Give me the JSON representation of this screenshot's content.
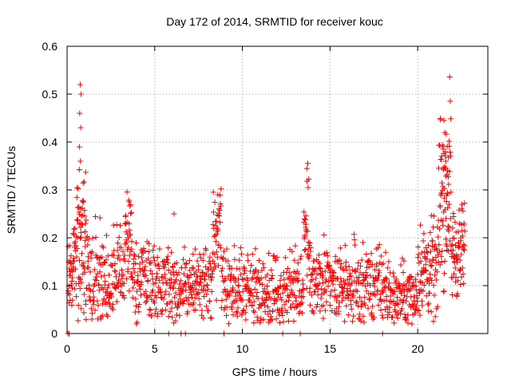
{
  "chart_data": {
    "type": "scatter",
    "title": "Day 172 of 2014, SRMTID for receiver kouc",
    "xlabel": "GPS time / hours",
    "ylabel": "SRMTID / TECUs",
    "xlim": [
      0,
      24
    ],
    "ylim": [
      0,
      0.6
    ],
    "xticks": [
      "0",
      "5",
      "10",
      "15",
      "20"
    ],
    "yticks": [
      "0",
      "0.1",
      "0.2",
      "0.3",
      "0.4",
      "0.5",
      "0.6"
    ],
    "grid": true,
    "marker": "+",
    "color": "#ff0000",
    "series": [
      {
        "name": "SRMTID",
        "segments": [
          {
            "t0": 0.05,
            "t1": 0.55,
            "base": 0.14,
            "noise": 0.06,
            "n": 45
          },
          {
            "t0": 0.55,
            "t1": 1.1,
            "base": 0.2,
            "noise": 0.1,
            "n": 60
          },
          {
            "t0": 1.1,
            "t1": 3.3,
            "base": 0.12,
            "noise": 0.06,
            "n": 150
          },
          {
            "t0": 3.3,
            "t1": 3.7,
            "base": 0.2,
            "noise": 0.07,
            "n": 35
          },
          {
            "t0": 3.7,
            "t1": 5.8,
            "base": 0.11,
            "noise": 0.05,
            "n": 140
          },
          {
            "t0": 5.8,
            "t1": 8.3,
            "base": 0.1,
            "noise": 0.05,
            "n": 170
          },
          {
            "t0": 8.3,
            "t1": 8.8,
            "base": 0.2,
            "noise": 0.06,
            "n": 40
          },
          {
            "t0": 8.8,
            "t1": 13.5,
            "base": 0.09,
            "noise": 0.05,
            "n": 300
          },
          {
            "t0": 13.5,
            "t1": 13.9,
            "base": 0.2,
            "noise": 0.08,
            "n": 35
          },
          {
            "t0": 13.9,
            "t1": 18.2,
            "base": 0.1,
            "noise": 0.05,
            "n": 280
          },
          {
            "t0": 18.2,
            "t1": 20.0,
            "base": 0.08,
            "noise": 0.04,
            "n": 120
          },
          {
            "t0": 20.0,
            "t1": 21.2,
            "base": 0.13,
            "noise": 0.06,
            "n": 90
          },
          {
            "t0": 21.2,
            "t1": 21.9,
            "base": 0.3,
            "noise": 0.12,
            "n": 80
          },
          {
            "t0": 21.9,
            "t1": 22.7,
            "base": 0.17,
            "noise": 0.06,
            "n": 70
          }
        ],
        "peaks": [
          {
            "x": 0.75,
            "y": 0.52
          },
          {
            "x": 0.8,
            "y": 0.5
          },
          {
            "x": 0.72,
            "y": 0.46
          },
          {
            "x": 0.78,
            "y": 0.43
          },
          {
            "x": 0.7,
            "y": 0.39
          },
          {
            "x": 0.76,
            "y": 0.36
          },
          {
            "x": 3.55,
            "y": 0.275
          },
          {
            "x": 6.1,
            "y": 0.25
          },
          {
            "x": 8.6,
            "y": 0.29
          },
          {
            "x": 13.75,
            "y": 0.305
          },
          {
            "x": 21.5,
            "y": 0.445
          },
          {
            "x": 21.55,
            "y": 0.42
          },
          {
            "x": 21.45,
            "y": 0.39
          },
          {
            "x": 21.6,
            "y": 0.36
          },
          {
            "x": 21.7,
            "y": 0.34
          }
        ],
        "zeros": [
          0.05,
          0.12,
          5.8,
          6.5,
          6.75,
          8.95,
          12.3,
          13.3,
          18.0
        ]
      }
    ]
  }
}
